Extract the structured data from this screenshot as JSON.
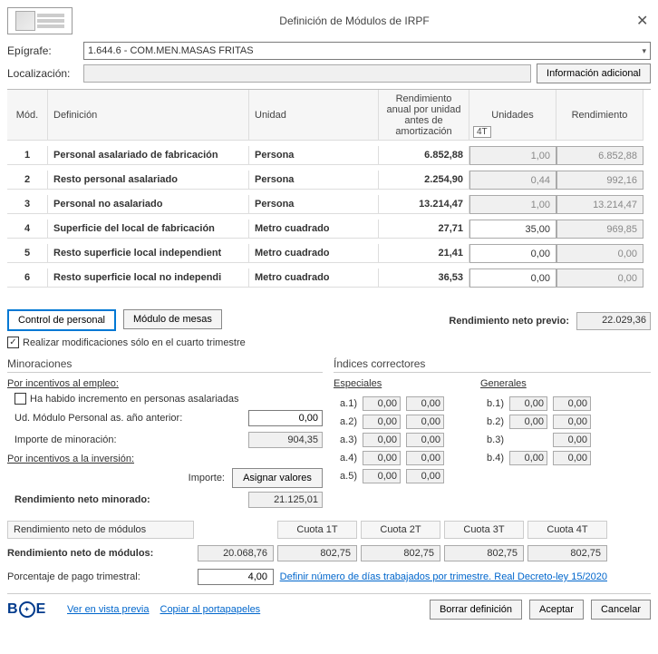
{
  "title": "Definición de Módulos de IRPF",
  "labels": {
    "epigrafe": "Epígrafe:",
    "localizacion": "Localización:",
    "info_adicional": "Información adicional"
  },
  "epigrafe_value": "1.644.6 - COM.MEN.MASAS FRITAS",
  "table": {
    "headers": {
      "mod": "Mód.",
      "definicion": "Definición",
      "unidad": "Unidad",
      "rendimiento_anual": "Rendimiento anual por unidad antes de amortización",
      "unidades": "Unidades",
      "unidades_badge": "4T",
      "rendimiento": "Rendimiento"
    },
    "rows": [
      {
        "n": "1",
        "def": "Personal asalariado de fabricación",
        "uni": "Persona",
        "ra": "6.852,88",
        "u": "1,00",
        "r": "6.852,88"
      },
      {
        "n": "2",
        "def": "Resto personal asalariado",
        "uni": "Persona",
        "ra": "2.254,90",
        "u": "0,44",
        "r": "992,16"
      },
      {
        "n": "3",
        "def": "Personal no asalariado",
        "uni": "Persona",
        "ra": "13.214,47",
        "u": "1,00",
        "r": "13.214,47"
      },
      {
        "n": "4",
        "def": "Superficie del local de fabricación",
        "uni": "Metro cuadrado",
        "ra": "27,71",
        "u": "35,00",
        "r": "969,85"
      },
      {
        "n": "5",
        "def": "Resto superficie local independient",
        "uni": "Metro cuadrado",
        "ra": "21,41",
        "u": "0,00",
        "r": "0,00"
      },
      {
        "n": "6",
        "def": "Resto superficie local no independi",
        "uni": "Metro cuadrado",
        "ra": "36,53",
        "u": "0,00",
        "r": "0,00"
      }
    ]
  },
  "mid": {
    "control_personal": "Control de personal",
    "modulo_mesas": "Módulo de mesas",
    "chk_label": "Realizar modificaciones sólo en el cuarto trimestre",
    "chk_checked": "✓",
    "rnp_label": "Rendimiento neto previo:",
    "rnp_value": "22.029,36"
  },
  "minoraciones": {
    "title": "Minoraciones",
    "sub1": "Por incentivos al empleo:",
    "chk_incremento": "Ha habido incremento en personas asalariadas",
    "ud_modulo": "Ud. Módulo Personal as. año anterior:",
    "ud_modulo_val": "0,00",
    "importe_min": "Importe de minoración:",
    "importe_min_val": "904,35",
    "sub2": "Por incentivos a la inversión:",
    "importe_lbl": "Importe:",
    "asignar": "Asignar valores",
    "rnm_lbl": "Rendimiento neto minorado:",
    "rnm_val": "21.125,01"
  },
  "indices": {
    "title": "Índices correctores",
    "especiales": "Especiales",
    "generales": "Generales",
    "a": [
      {
        "k": "a.1)",
        "v1": "0,00",
        "v2": "0,00"
      },
      {
        "k": "a.2)",
        "v1": "0,00",
        "v2": "0,00"
      },
      {
        "k": "a.3)",
        "v1": "0,00",
        "v2": "0,00"
      },
      {
        "k": "a.4)",
        "v1": "0,00",
        "v2": "0,00"
      },
      {
        "k": "a.5)",
        "v1": "0,00",
        "v2": "0,00"
      }
    ],
    "b": [
      {
        "k": "b.1)",
        "v1": "0,00",
        "v2": "0,00"
      },
      {
        "k": "b.2)",
        "v1": "0,00",
        "v2": "0,00"
      },
      {
        "k": "b.3)",
        "v1": "",
        "v2": "0,00"
      },
      {
        "k": "b.4)",
        "v1": "0,00",
        "v2": "0,00"
      }
    ]
  },
  "bottom": {
    "head_main": "Rendimiento neto de módulos",
    "cuotas": [
      "Cuota 1T",
      "Cuota 2T",
      "Cuota 3T",
      "Cuota 4T"
    ],
    "row1_lbl": "Rendimiento neto de módulos:",
    "row1_val": "20.068,76",
    "row1_cuotas": [
      "802,75",
      "802,75",
      "802,75",
      "802,75"
    ],
    "row2_lbl": "Porcentaje de pago trimestral:",
    "row2_val": "4,00",
    "link": "Definir número de días trabajados por trimestre. Real Decreto-ley 15/2020"
  },
  "footer": {
    "vista_previa": "Ver en vista previa",
    "copiar": "Copiar al portapapeles",
    "borrar": "Borrar definición",
    "aceptar": "Aceptar",
    "cancelar": "Cancelar"
  }
}
